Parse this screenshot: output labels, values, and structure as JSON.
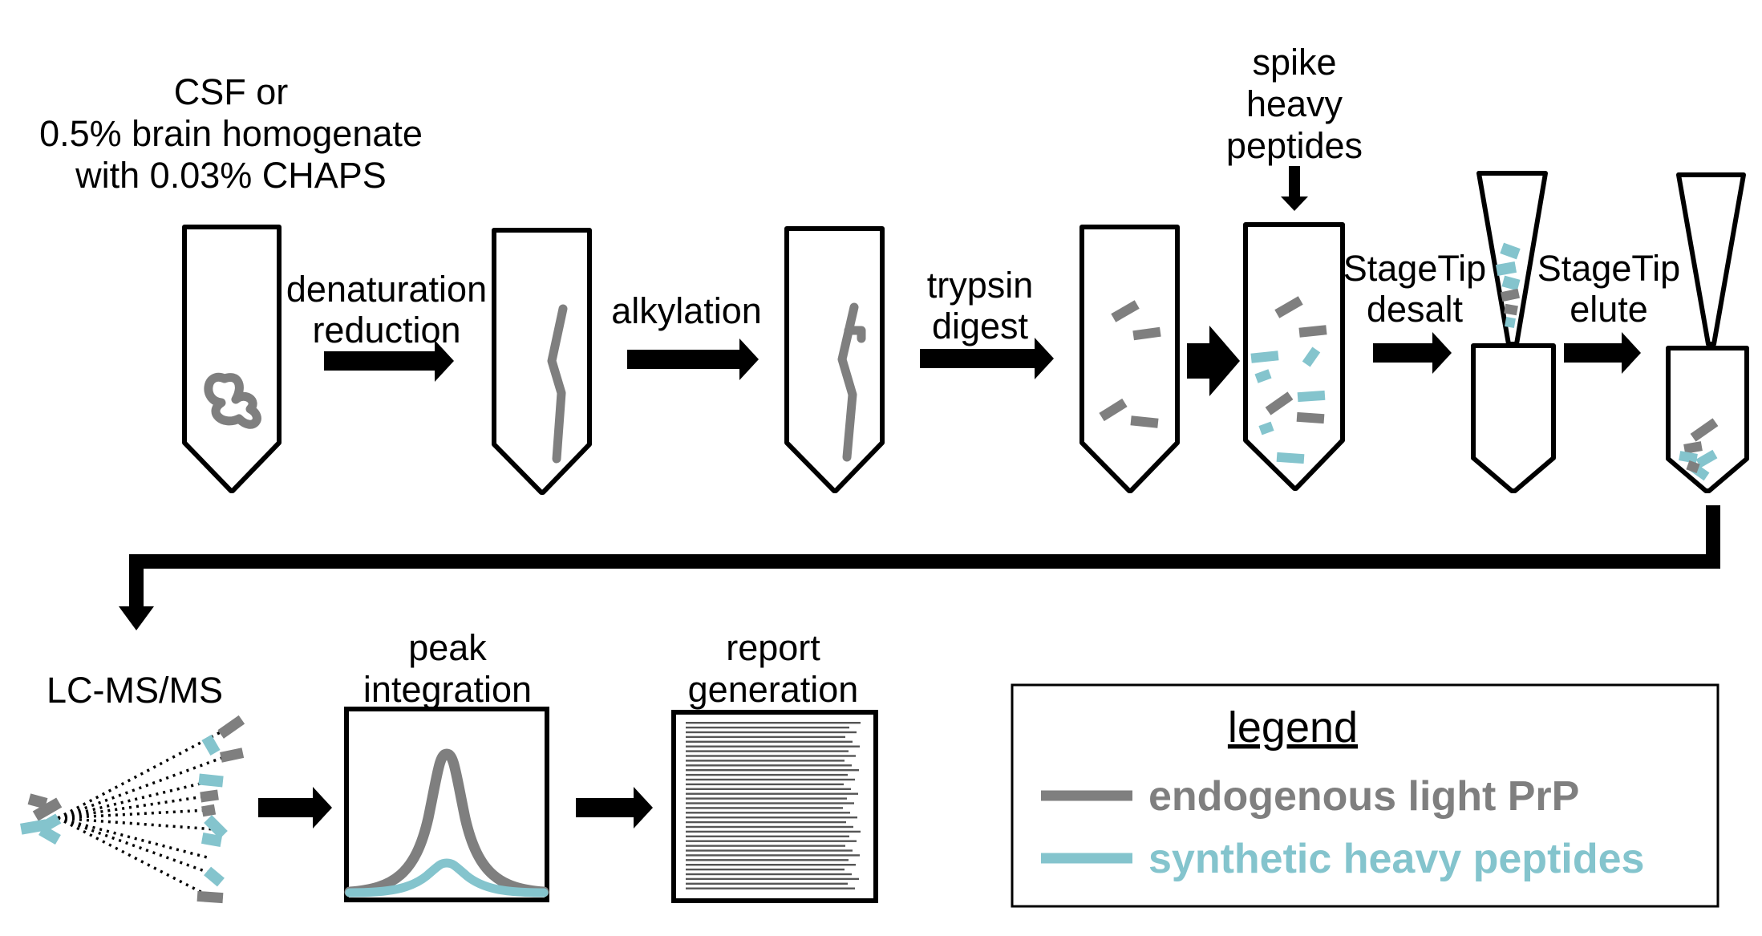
{
  "steps": {
    "sample_line1": "CSF or",
    "sample_line2": "0.5% brain homogenate",
    "sample_line3": "with 0.03% CHAPS",
    "denat_line1": "denaturation",
    "denat_line2": "reduction",
    "alkylation": "alkylation",
    "trypsin_line1": "trypsin",
    "trypsin_line2": "digest",
    "spike_line1": "spike",
    "spike_line2": "heavy",
    "spike_line3": "peptides",
    "desalt_line1": "StageTip",
    "desalt_line2": "desalt",
    "elute_line1": "StageTip",
    "elute_line2": "elute",
    "lcms": "LC-MS/MS",
    "peak_line1": "peak",
    "peak_line2": "integration",
    "report_line1": "report",
    "report_line2": "generation"
  },
  "legend": {
    "title": "legend",
    "endogenous": "endogenous light PrP",
    "synthetic": "synthetic heavy peptides"
  },
  "colors": {
    "endogenous": "#7f7f7f",
    "synthetic": "#84c4cd"
  }
}
